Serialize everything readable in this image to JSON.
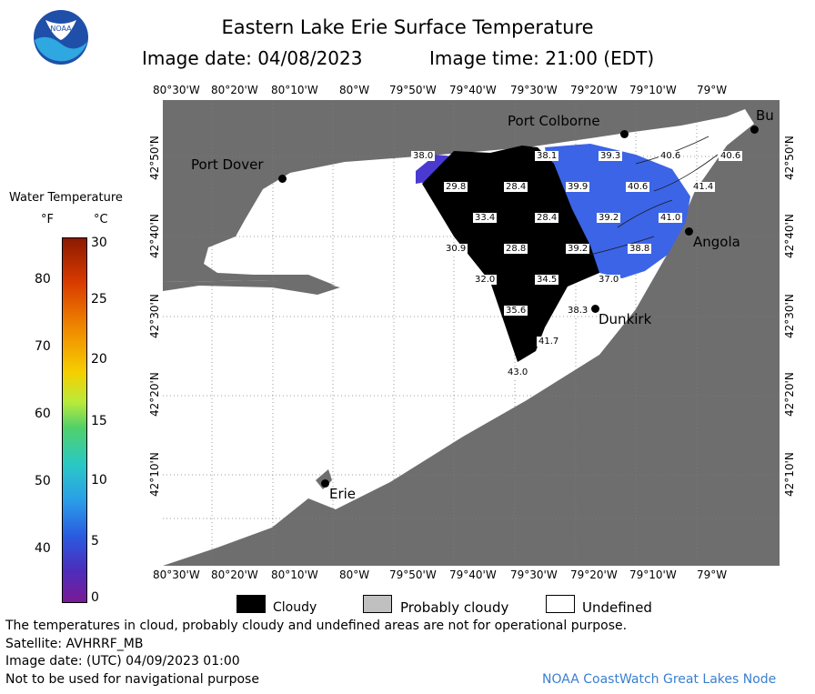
{
  "title": "Eastern Lake Erie Surface Temperature",
  "image_date_label": "Image date: 04/08/2023",
  "image_time_label": "Image time: 21:00 (EDT)",
  "logo_text": "NOAA",
  "colorbar": {
    "title": "Water Temperature",
    "unit_f": "°F",
    "unit_c": "°C",
    "f_ticks": [
      "80",
      "70",
      "60",
      "50",
      "40"
    ],
    "c_ticks": [
      "30",
      "25",
      "20",
      "15",
      "10",
      "5",
      "0"
    ]
  },
  "longitude_ticks": [
    "80°30'W",
    "80°20'W",
    "80°10'W",
    "80°W",
    "79°50'W",
    "79°40'W",
    "79°30'W",
    "79°20'W",
    "79°10'W",
    "79°W"
  ],
  "latitude_ticks": [
    "42°50'N",
    "42°40'N",
    "42°30'N",
    "42°20'N",
    "42°10'N"
  ],
  "places": {
    "port_colborne": "Port Colborne",
    "port_dover": "Port Dover",
    "buffalo": "Bu",
    "angola": "Angola",
    "dunkirk": "Dunkirk",
    "erie": "Erie"
  },
  "temperature_labels": [
    "38.0",
    "38.1",
    "39.3",
    "40.6",
    "40.6",
    "29.8",
    "28.4",
    "39.9",
    "40.6",
    "41.4",
    "33.4",
    "28.4",
    "39.2",
    "41.0",
    "30.9",
    "28.8",
    "39.2",
    "38.8",
    "32.0",
    "34.5",
    "37.0",
    "35.6",
    "38.3",
    "41.7",
    "43.0"
  ],
  "map_legend": {
    "cloudy": "Cloudy",
    "probably_cloudy": "Probably cloudy",
    "undefined": "Undefined"
  },
  "colors": {
    "land": "#6e6e6e",
    "water_undefined": "#ffffff",
    "cloudy": "#000000",
    "probably_cloudy": "#c0c0c0",
    "water_warm": "#3c64e6",
    "water_cool": "#4a3ad2"
  },
  "footer": {
    "disclaimer": "The temperatures in cloud, probably cloudy and undefined areas are not for operational purpose.",
    "satellite": "Satellite: AVHRRF_MB",
    "utc_date": "Image date: (UTC) 04/09/2023  01:00",
    "navigation": "Not to be used for navigational purpose",
    "credit": "NOAA CoastWatch Great Lakes Node"
  }
}
